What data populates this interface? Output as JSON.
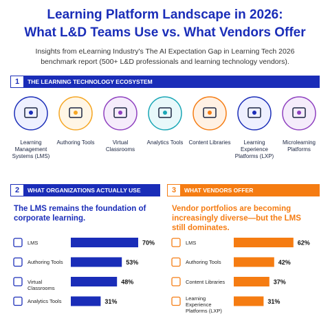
{
  "title": [
    "Learning Platform Landscape in 2026:",
    "What L&D Teams Use vs. What Vendors Offer"
  ],
  "subtitle": "Insights from eLearning Industry's The AI Expectation Gap in Learning Tech 2026 benchmark report (500+ L&D professionals and learning technology vendors).",
  "ecosystem": {
    "number": "1",
    "heading": "THE LEARNING TECHNOLOGY ECOSYSTEM",
    "items": [
      "Learning Management Systems (LMS)",
      "Authoring Tools",
      "Virtual Classrooms",
      "Analytics Tools",
      "Content Libraries",
      "Learning Experience Platforms (LXP)",
      "Microlearning Platforms"
    ]
  },
  "use": {
    "type": "bar",
    "number": "2",
    "heading": "WHAT ORGANIZATIONS ACTUALLY USE",
    "headline": "The LMS remains the foundation of corporate learning.",
    "color": "#1a2db8",
    "categories": [
      "LMS",
      "Authoring Tools",
      "Virtual Classrooms",
      "Analytics Tools"
    ],
    "values": [
      70,
      53,
      48,
      31
    ],
    "value_labels": [
      "70%",
      "53%",
      "48%",
      "31%"
    ]
  },
  "offer": {
    "type": "bar",
    "number": "3",
    "heading": "WHAT VENDORS OFFER",
    "headline": "Vendor portfolios are becoming increasingly diverse—but the LMS still dominates.",
    "color": "#f57c12",
    "categories": [
      "LMS",
      "Authoring Tools",
      "Content Libraries",
      "Learning Experience Platforms (LXP)"
    ],
    "values": [
      62,
      42,
      37,
      31
    ],
    "value_labels": [
      "62%",
      "42%",
      "37%",
      "31%"
    ]
  }
}
